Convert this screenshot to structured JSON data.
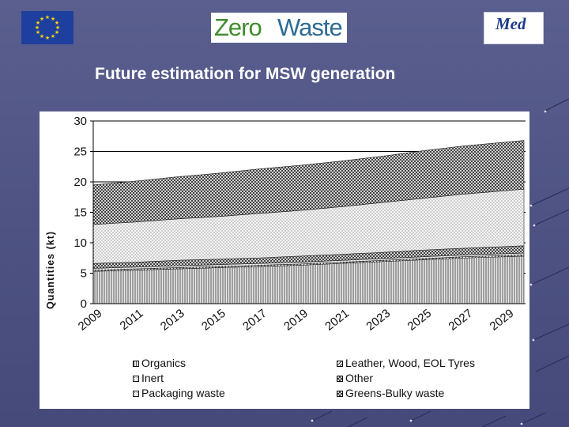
{
  "slide": {
    "title": "Future estimation for MSW generation"
  },
  "logos": {
    "left": {
      "icon": "eu-flag-icon"
    },
    "center": {
      "text_part1": "Zero",
      "text_part2": "Waste"
    },
    "right": {
      "text": "Med"
    }
  },
  "chart_data": {
    "type": "area",
    "stacked": true,
    "title": "",
    "ylabel": "Quantities (kt)",
    "xlabel": "",
    "ylim": [
      0,
      30
    ],
    "yticks": [
      0,
      5,
      10,
      15,
      20,
      25,
      30
    ],
    "x": [
      2009,
      2011,
      2013,
      2015,
      2017,
      2019,
      2021,
      2023,
      2025,
      2027,
      2029
    ],
    "xtick_labels": [
      "2009",
      "2011",
      "2013",
      "2015",
      "2017",
      "2019",
      "2021",
      "2023",
      "2025",
      "2027",
      "2029"
    ],
    "x_end": 2030,
    "grid": "horizontal",
    "legend_position": "bottom",
    "series": [
      {
        "name": "Organics",
        "values": [
          5.3,
          5.5,
          5.7,
          5.9,
          6.1,
          6.3,
          6.6,
          6.9,
          7.2,
          7.5,
          7.8
        ],
        "color": "#e4e4e4",
        "pattern": "vertical"
      },
      {
        "name": "Leather, Wood, EOL Tyres",
        "values": [
          0.2,
          0.2,
          0.2,
          0.2,
          0.2,
          0.2,
          0.2,
          0.2,
          0.2,
          0.2,
          0.2
        ],
        "color": "#ffffff",
        "pattern": "diagonal"
      },
      {
        "name": "Inert",
        "values": [
          0.3,
          0.3,
          0.3,
          0.3,
          0.3,
          0.3,
          0.3,
          0.3,
          0.3,
          0.3,
          0.3
        ],
        "color": "#cccccc",
        "pattern": "dots"
      },
      {
        "name": "Other",
        "values": [
          0.8,
          0.8,
          0.9,
          0.9,
          0.9,
          1.0,
          1.0,
          1.0,
          1.1,
          1.1,
          1.2
        ],
        "color": "#333333",
        "pattern": "checker"
      },
      {
        "name": "Packaging waste",
        "values": [
          6.4,
          6.6,
          6.8,
          7.0,
          7.3,
          7.5,
          7.8,
          8.2,
          8.5,
          8.9,
          9.3
        ],
        "color": "#f0f0f0",
        "pattern": "dots"
      },
      {
        "name": "Greens-Bulky waste",
        "values": [
          6.5,
          6.7,
          6.9,
          7.1,
          7.3,
          7.4,
          7.5,
          7.6,
          7.8,
          7.9,
          8.0
        ],
        "color": "#444444",
        "pattern": "checker"
      }
    ],
    "legend_order": [
      [
        "Organics",
        "Leather, Wood, EOL Tyres"
      ],
      [
        "Inert",
        "Other"
      ],
      [
        "Packaging waste",
        "Greens-Bulky waste"
      ]
    ]
  }
}
